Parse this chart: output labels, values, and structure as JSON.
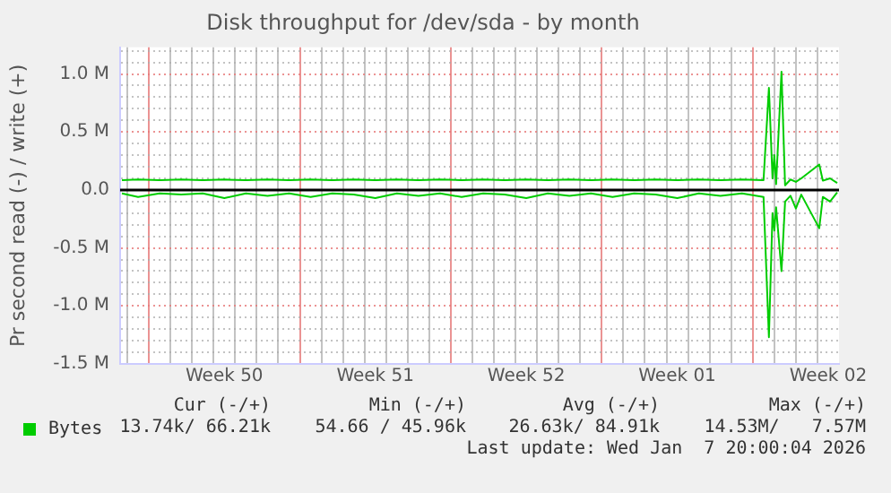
{
  "chart_data": {
    "type": "line",
    "title": "Disk throughput for /dev/sda - by month",
    "ylabel": "Pr second read (-) / write (+)",
    "x": [
      "2025-12-06T18:00",
      "2025-12-07T12:00",
      "2025-12-08T12:00",
      "2025-12-09T12:00",
      "2025-12-10T12:00",
      "2025-12-11T12:00",
      "2025-12-12T12:00",
      "2025-12-13T12:00",
      "2025-12-14T12:00",
      "2025-12-15T12:00",
      "2025-12-16T12:00",
      "2025-12-17T12:00",
      "2025-12-18T12:00",
      "2025-12-19T12:00",
      "2025-12-20T12:00",
      "2025-12-21T12:00",
      "2025-12-22T12:00",
      "2025-12-23T12:00",
      "2025-12-24T12:00",
      "2025-12-25T12:00",
      "2025-12-26T12:00",
      "2025-12-27T12:00",
      "2025-12-28T12:00",
      "2025-12-29T12:00",
      "2025-12-30T12:00",
      "2025-12-31T12:00",
      "2026-01-01T12:00",
      "2026-01-02T12:00",
      "2026-01-03T12:00",
      "2026-01-04T12:00",
      "2026-01-05T12:00",
      "2026-01-05T18:00",
      "2026-01-05T22:00",
      "2026-01-06T00:00",
      "2026-01-06T02:00",
      "2026-01-06T08:00",
      "2026-01-06T12:00",
      "2026-01-06T18:00",
      "2026-01-07T00:00",
      "2026-01-07T06:00",
      "2026-01-08T02:00",
      "2026-01-08T06:00",
      "2026-01-08T14:00",
      "2026-01-08T22:00"
    ],
    "series": [
      {
        "name": "Bytes",
        "color": "#00cc00",
        "values": [
          85000,
          90000,
          85000,
          90000,
          85000,
          90000,
          85000,
          90000,
          85000,
          90000,
          85000,
          90000,
          85000,
          90000,
          85000,
          90000,
          85000,
          90000,
          85000,
          90000,
          85000,
          90000,
          85000,
          90000,
          85000,
          90000,
          85000,
          90000,
          85000,
          90000,
          85000,
          880000,
          100000,
          300000,
          50000,
          1020000,
          40000,
          90000,
          70000,
          100000,
          220000,
          80000,
          100000,
          60000
        ]
      },
      {
        "color": "#00cc00",
        "values": [
          -30000,
          -60000,
          -30000,
          -40000,
          -30000,
          -70000,
          -30000,
          -50000,
          -30000,
          -60000,
          -30000,
          -40000,
          -70000,
          -30000,
          -50000,
          -30000,
          -60000,
          -30000,
          -40000,
          -70000,
          -30000,
          -50000,
          -30000,
          -60000,
          -30000,
          -40000,
          -70000,
          -30000,
          -50000,
          -30000,
          -60000,
          -1270000,
          -200000,
          -350000,
          -150000,
          -700000,
          -100000,
          -50000,
          -160000,
          -40000,
          -330000,
          -60000,
          -100000,
          -20000
        ]
      }
    ],
    "xlim": [
      "2025-12-06T16:00",
      "2026-01-09T00:00"
    ],
    "xticks": [
      {
        "value": "2025-12-07T00:00",
        "label": null
      },
      {
        "value": "2025-12-08T00:00",
        "label": null
      },
      {
        "value": "2025-12-09T00:00",
        "label": null
      },
      {
        "value": "2025-12-10T00:00",
        "label": null
      },
      {
        "value": "2025-12-11T00:00",
        "label": null
      },
      {
        "value": "2025-12-11T12:00",
        "label": "Week 50"
      },
      {
        "value": "2025-12-12T00:00",
        "label": null
      },
      {
        "value": "2025-12-13T00:00",
        "label": null
      },
      {
        "value": "2025-12-14T00:00",
        "label": null
      },
      {
        "value": "2025-12-15T00:00",
        "label": null
      },
      {
        "value": "2025-12-16T00:00",
        "label": null
      },
      {
        "value": "2025-12-17T00:00",
        "label": null
      },
      {
        "value": "2025-12-18T00:00",
        "label": null
      },
      {
        "value": "2025-12-18T12:00",
        "label": "Week 51"
      },
      {
        "value": "2025-12-19T00:00",
        "label": null
      },
      {
        "value": "2025-12-20T00:00",
        "label": null
      },
      {
        "value": "2025-12-21T00:00",
        "label": null
      },
      {
        "value": "2025-12-22T00:00",
        "label": null
      },
      {
        "value": "2025-12-23T00:00",
        "label": null
      },
      {
        "value": "2025-12-24T00:00",
        "label": null
      },
      {
        "value": "2025-12-25T00:00",
        "label": null
      },
      {
        "value": "2025-12-25T12:00",
        "label": "Week 52"
      },
      {
        "value": "2025-12-26T00:00",
        "label": null
      },
      {
        "value": "2025-12-27T00:00",
        "label": null
      },
      {
        "value": "2025-12-28T00:00",
        "label": null
      },
      {
        "value": "2025-12-29T00:00",
        "label": null
      },
      {
        "value": "2025-12-30T00:00",
        "label": null
      },
      {
        "value": "2025-12-31T00:00",
        "label": null
      },
      {
        "value": "2026-01-01T00:00",
        "label": null
      },
      {
        "value": "2026-01-01T12:00",
        "label": "Week 01"
      },
      {
        "value": "2026-01-02T00:00",
        "label": null
      },
      {
        "value": "2026-01-03T00:00",
        "label": null
      },
      {
        "value": "2026-01-04T00:00",
        "label": null
      },
      {
        "value": "2026-01-05T00:00",
        "label": null
      },
      {
        "value": "2026-01-06T00:00",
        "label": null
      },
      {
        "value": "2026-01-07T00:00",
        "label": null
      },
      {
        "value": "2026-01-08T00:00",
        "label": null
      },
      {
        "value": "2026-01-08T12:00",
        "label": "Week 02"
      }
    ],
    "ylim": [
      -1500000,
      1230000
    ],
    "yticks": [
      {
        "value": -1500000,
        "label": "-1.5 M"
      },
      {
        "value": -1400000,
        "label": null
      },
      {
        "value": -1300000,
        "label": null
      },
      {
        "value": -1200000,
        "label": null
      },
      {
        "value": -1100000,
        "label": null
      },
      {
        "value": -1000000,
        "label": "-1.0 M"
      },
      {
        "value": -900000,
        "label": null
      },
      {
        "value": -800000,
        "label": null
      },
      {
        "value": -700000,
        "label": null
      },
      {
        "value": -600000,
        "label": null
      },
      {
        "value": -500000,
        "label": "-0.5 M"
      },
      {
        "value": -400000,
        "label": null
      },
      {
        "value": -300000,
        "label": null
      },
      {
        "value": -200000,
        "label": null
      },
      {
        "value": -100000,
        "label": null
      },
      {
        "value": 0,
        "label": "0.0"
      },
      {
        "value": 100000,
        "label": null
      },
      {
        "value": 200000,
        "label": null
      },
      {
        "value": 300000,
        "label": null
      },
      {
        "value": 400000,
        "label": null
      },
      {
        "value": 500000,
        "label": "0.5 M"
      },
      {
        "value": 600000,
        "label": null
      },
      {
        "value": 700000,
        "label": null
      },
      {
        "value": 800000,
        "label": null
      },
      {
        "value": 900000,
        "label": null
      },
      {
        "value": 1000000,
        "label": "1.0 M"
      },
      {
        "value": 1100000,
        "label": null
      },
      {
        "value": 1200000,
        "label": null
      }
    ],
    "ref_lines": [
      {
        "axis": "y",
        "value": 0,
        "color": "#000000"
      }
    ],
    "grid": true,
    "legend": "bottom",
    "marker": "none",
    "line_style": "solid",
    "annotations": [
      "Cur (-/+)",
      "Min (-/+)",
      "Avg (-/+)",
      "Max (-/+)",
      "13.74k/ 66.21k",
      "54.66 / 45.96k",
      "26.63k/ 84.91k",
      "14.53M/   7.57M",
      "Last update: Wed Jan  7 20:00:04 2026"
    ]
  }
}
